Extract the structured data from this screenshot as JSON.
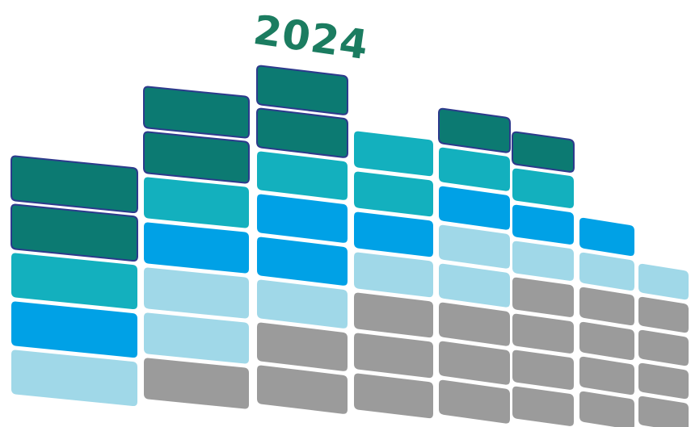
{
  "year_label": "2024",
  "colors": {
    "dark_teal": "#0c7a72",
    "teal": "#13b0be",
    "blue": "#00a1e6",
    "light_blue": "#a0d8e8",
    "gray": "#9b9b9b",
    "outline": "#2d3a8c",
    "year_text": "#1b7c60"
  },
  "columns": [
    {
      "name": "column-1",
      "stack": [
        "light_blue",
        "blue",
        "teal",
        "dark_teal",
        "dark_teal"
      ]
    },
    {
      "name": "column-2",
      "stack": [
        "gray",
        "light_blue",
        "light_blue",
        "blue",
        "teal",
        "dark_teal",
        "dark_teal"
      ]
    },
    {
      "name": "column-3",
      "stack": [
        "gray",
        "gray",
        "light_blue",
        "blue",
        "blue",
        "teal",
        "dark_teal",
        "dark_teal"
      ]
    },
    {
      "name": "column-4",
      "stack": [
        "gray",
        "gray",
        "gray",
        "light_blue",
        "blue",
        "teal",
        "teal"
      ]
    },
    {
      "name": "column-5",
      "stack": [
        "gray",
        "gray",
        "gray",
        "light_blue",
        "light_blue",
        "blue",
        "teal",
        "dark_teal"
      ]
    },
    {
      "name": "column-6",
      "stack": [
        "gray",
        "gray",
        "gray",
        "gray",
        "light_blue",
        "blue",
        "teal",
        "dark_teal"
      ]
    },
    {
      "name": "column-7",
      "stack": [
        "gray",
        "gray",
        "gray",
        "gray",
        "light_blue",
        "blue"
      ]
    },
    {
      "name": "column-8",
      "stack": [
        "gray",
        "gray",
        "gray",
        "gray",
        "light_blue"
      ]
    }
  ]
}
